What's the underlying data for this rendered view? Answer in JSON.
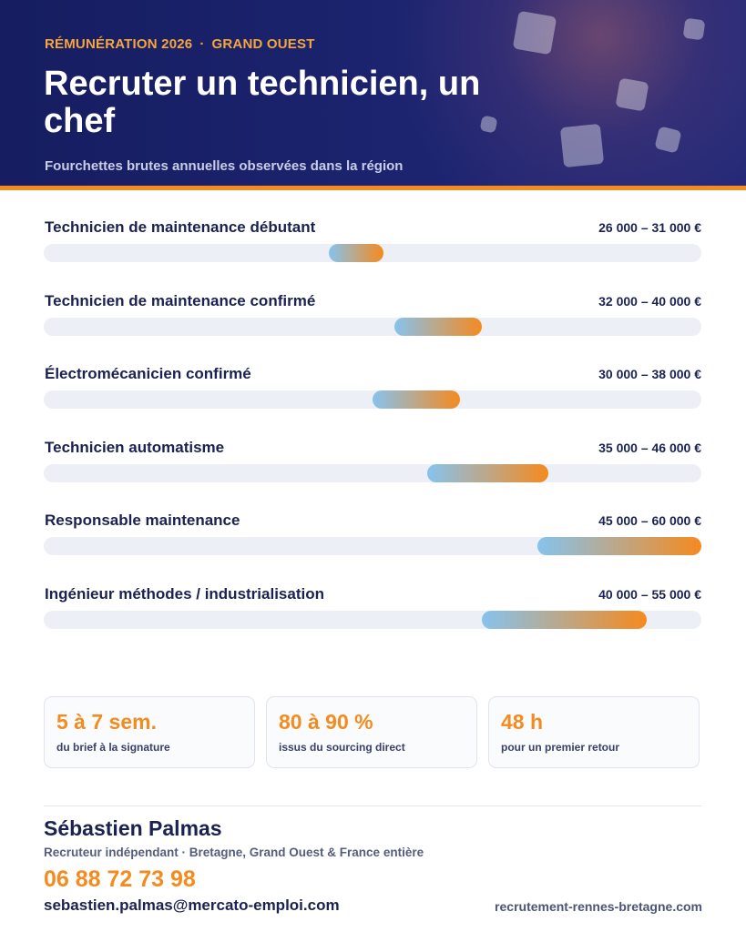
{
  "header": {
    "eyebrow_left": "RÉMUNÉRATION 2026",
    "eyebrow_separator": "·",
    "eyebrow_right": "GRAND OUEST",
    "title": "Recruter un technicien, un chef",
    "subtitle": "Fourchettes brutes annuelles observées dans la région"
  },
  "chart_data": {
    "type": "bar",
    "orientation": "horizontal-range",
    "scale_min": 0,
    "scale_max": 60000,
    "categories": [
      "Technicien de maintenance débutant",
      "Technicien de maintenance confirmé",
      "Électromécanicien confirmé",
      "Technicien automatisme",
      "Responsable maintenance",
      "Ingénieur méthodes / industrialisation"
    ],
    "ranges": [
      {
        "label": "Technicien de maintenance débutant",
        "min": 26000,
        "max": 31000,
        "range_text": "26 000 – 31 000 €"
      },
      {
        "label": "Technicien de maintenance confirmé",
        "min": 32000,
        "max": 40000,
        "range_text": "32 000 – 40 000 €"
      },
      {
        "label": "Électromécanicien confirmé",
        "min": 30000,
        "max": 38000,
        "range_text": "30 000 – 38 000 €"
      },
      {
        "label": "Technicien automatisme",
        "min": 35000,
        "max": 46000,
        "range_text": "35 000 – 46 000 €"
      },
      {
        "label": "Responsable maintenance",
        "min": 45000,
        "max": 60000,
        "range_text": "45 000 – 60 000 €"
      },
      {
        "label": "Ingénieur méthodes / industrialisation",
        "min": 40000,
        "max": 55000,
        "range_text": "40 000 – 55 000 €"
      }
    ],
    "colors": {
      "bar_start": "#86c3ee",
      "bar_end": "#f58a1f",
      "track": "#edeff6"
    }
  },
  "stats": [
    {
      "value": "5 à 7 sem.",
      "caption": "du brief à la signature"
    },
    {
      "value": "80 à 90 %",
      "caption": "issus du sourcing direct"
    },
    {
      "value": "48 h",
      "caption": "pour un premier retour"
    }
  ],
  "contact": {
    "name": "Sébastien Palmas",
    "role": "Recruteur indépendant · Bretagne, Grand Ouest & France entière",
    "phone": "06 88 72 73 98",
    "email": "sebastien.palmas@mercato-emploi.com",
    "website": "recrutement-rennes-bretagne.com"
  },
  "colors": {
    "navy": "#1b2150",
    "accent": "#f58a1f",
    "header_bg": "#1c2470"
  }
}
